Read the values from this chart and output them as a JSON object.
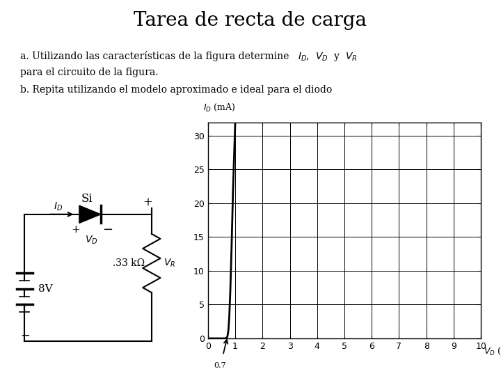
{
  "title": "Tarea de recta de carga",
  "line1a": "a. Utilizando las características de la figura determine ",
  "line1b": "I",
  "line1c": "D",
  "line1d": ", ",
  "line1e": "V",
  "line1f": "D",
  "line1g": " y ",
  "line1h": "V",
  "line1i": "R",
  "line2": "para el circuito de la figura.",
  "line3": "b. Repita utilizando el modelo aproximado e ideal para el diodo",
  "graph_xlabel": "V",
  "graph_xlabel_sub": "D",
  "graph_xlabel_unit": " (V)",
  "graph_ylabel": "I",
  "graph_ylabel_sub": "D",
  "graph_ylabel_unit": " (mA)",
  "x_ticks": [
    0,
    1,
    2,
    3,
    4,
    5,
    6,
    7,
    8,
    9,
    10
  ],
  "y_ticks": [
    0,
    5,
    10,
    15,
    20,
    25,
    30
  ],
  "x_max": 10,
  "y_max": 32,
  "diode_curve_x": [
    0.0,
    0.3,
    0.5,
    0.6,
    0.65,
    0.68,
    0.7,
    0.72,
    0.75,
    0.78,
    0.82,
    0.87,
    0.92,
    1.0
  ],
  "diode_curve_y": [
    0.0,
    0.0,
    0.0,
    0.0,
    0.02,
    0.08,
    0.15,
    0.4,
    1.2,
    3.0,
    7.0,
    14.0,
    22.0,
    34.0
  ],
  "bg_color": "#ffffff",
  "curve_color": "#000000",
  "grid_color": "#000000",
  "text_color": "#000000"
}
